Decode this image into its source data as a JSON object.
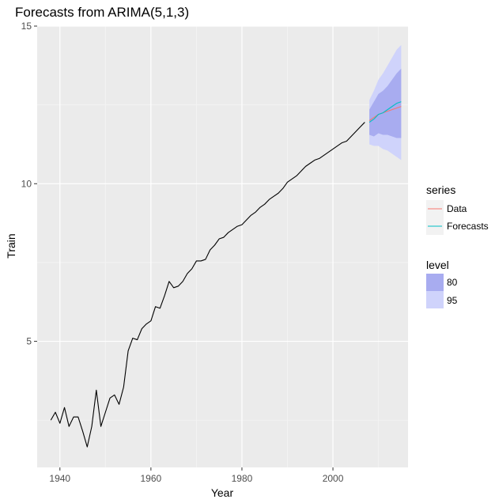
{
  "chart_data": {
    "type": "line",
    "title": "Forecasts from ARIMA(5,1,3)",
    "xlabel": "Year",
    "ylabel": "Train",
    "xlim": [
      1935,
      2016.5
    ],
    "ylim": [
      1.0,
      15.0
    ],
    "x_ticks": [
      1940,
      1960,
      1980,
      2000
    ],
    "x_tick_labels": [
      "1940",
      "1960",
      "1980",
      "2000"
    ],
    "y_ticks": [
      5,
      10,
      15
    ],
    "y_tick_labels": [
      "5",
      "10",
      "15"
    ],
    "grid": true,
    "legend_placement": "right",
    "colors": {
      "panel": "#ebebeb",
      "grid_major": "#ffffff",
      "history": "#000000",
      "data": "#f8766d",
      "forecasts": "#00bfc4",
      "band80": "#a8acf0",
      "band95": "#cfd3fb"
    },
    "history": {
      "x": [
        1938,
        1939,
        1940,
        1941,
        1942,
        1943,
        1944,
        1945,
        1946,
        1947,
        1948,
        1949,
        1950,
        1951,
        1952,
        1953,
        1954,
        1955,
        1956,
        1957,
        1958,
        1959,
        1960,
        1961,
        1962,
        1963,
        1964,
        1965,
        1966,
        1967,
        1968,
        1969,
        1970,
        1971,
        1972,
        1973,
        1974,
        1975,
        1976,
        1977,
        1978,
        1979,
        1980,
        1981,
        1982,
        1983,
        1984,
        1985,
        1986,
        1987,
        1988,
        1989,
        1990,
        1991,
        1992,
        1993,
        1994,
        1995,
        1996,
        1997,
        1998,
        1999,
        2000,
        2001,
        2002,
        2003,
        2004,
        2005,
        2006,
        2007
      ],
      "y": [
        2.5,
        2.75,
        2.4,
        2.9,
        2.3,
        2.6,
        2.6,
        2.15,
        1.65,
        2.3,
        3.45,
        2.3,
        2.75,
        3.2,
        3.3,
        3.0,
        3.55,
        4.7,
        5.1,
        5.05,
        5.4,
        5.55,
        5.65,
        6.1,
        6.05,
        6.45,
        6.9,
        6.7,
        6.75,
        6.9,
        7.15,
        7.3,
        7.55,
        7.55,
        7.6,
        7.9,
        8.05,
        8.25,
        8.3,
        8.45,
        8.55,
        8.65,
        8.7,
        8.85,
        9.0,
        9.1,
        9.25,
        9.35,
        9.5,
        9.6,
        9.7,
        9.85,
        10.05,
        10.15,
        10.25,
        10.4,
        10.55,
        10.65,
        10.75,
        10.8,
        10.9,
        11.0,
        11.1,
        11.2,
        11.3,
        11.35,
        11.5,
        11.65,
        11.8,
        11.95
      ]
    },
    "series": [
      {
        "name": "Data",
        "x": [
          2008,
          2009,
          2010,
          2011,
          2012,
          2013,
          2014,
          2015
        ],
        "y": [
          12.0,
          12.1,
          12.2,
          12.25,
          12.3,
          12.35,
          12.4,
          12.45
        ]
      },
      {
        "name": "Forecasts",
        "x": [
          2008,
          2009,
          2010,
          2011,
          2012,
          2013,
          2014,
          2015
        ],
        "y": [
          11.95,
          12.05,
          12.2,
          12.25,
          12.35,
          12.45,
          12.55,
          12.6
        ]
      }
    ],
    "intervals": {
      "x": [
        2008,
        2009,
        2010,
        2011,
        2012,
        2013,
        2014,
        2015
      ],
      "lower80": [
        11.55,
        11.5,
        11.6,
        11.55,
        11.55,
        11.5,
        11.45,
        11.45
      ],
      "upper80": [
        12.35,
        12.6,
        12.85,
        12.95,
        13.1,
        13.3,
        13.5,
        13.65
      ],
      "lower95": [
        11.25,
        11.2,
        11.2,
        11.1,
        11.05,
        10.95,
        10.85,
        10.75
      ],
      "upper95": [
        12.65,
        12.95,
        13.3,
        13.5,
        13.75,
        14.0,
        14.25,
        14.4
      ]
    },
    "legend": {
      "series_title": "series",
      "series_items": [
        "Data",
        "Forecasts"
      ],
      "level_title": "level",
      "level_items": [
        "80",
        "95"
      ]
    }
  }
}
